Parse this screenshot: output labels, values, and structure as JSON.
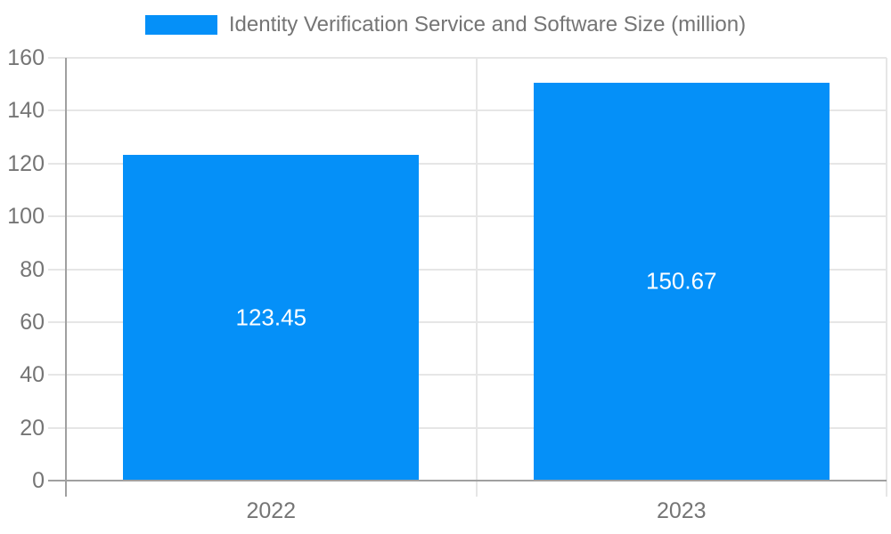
{
  "legend": {
    "label": "Identity Verification Service and Software Size (million)"
  },
  "colors": {
    "bar": "#0590f8",
    "axis_line": "#a0a0a0",
    "gridline": "#e6e6e6",
    "axis_text": "#757575",
    "bar_label_text": "#ffffff"
  },
  "chart_data": {
    "type": "bar",
    "title": "Identity Verification Service and Software Size (million)",
    "categories": [
      "2022",
      "2023"
    ],
    "series": [
      {
        "name": "Identity Verification Service and Software Size (million)",
        "values": [
          123.45,
          150.67
        ]
      }
    ],
    "data_labels": [
      "123.45",
      "150.67"
    ],
    "xlabel": "",
    "ylabel": "",
    "ylim": [
      0,
      160
    ],
    "ytick_step": 20,
    "ytick_labels": [
      "0",
      "20",
      "40",
      "60",
      "80",
      "100",
      "120",
      "140",
      "160"
    ],
    "grid": true,
    "legend_position": "top"
  }
}
